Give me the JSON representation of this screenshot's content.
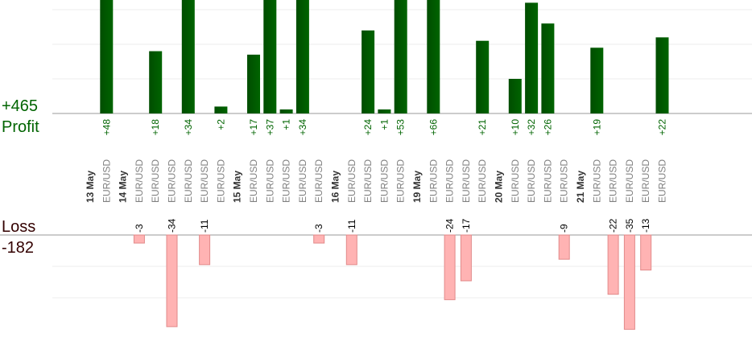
{
  "summary": {
    "profit_total": "+465",
    "profit_label": "Profit",
    "loss_label": "Loss",
    "loss_total": "-182"
  },
  "colors": {
    "profit_bar": "#006400",
    "profit_text": "#006400",
    "loss_bar": "#ffb3b3",
    "loss_text": "#000000",
    "loss_summary_text": "#330000",
    "date_label": "#333333",
    "pair_label": "#808080"
  },
  "chart_data": {
    "type": "bar",
    "series": [
      {
        "name": "Profit",
        "values": [
          48,
          18,
          34,
          2,
          17,
          37,
          1,
          34,
          24,
          1,
          53,
          66,
          21,
          10,
          32,
          26,
          19,
          22
        ]
      },
      {
        "name": "Loss",
        "values": [
          -3,
          -34,
          -11,
          -3,
          -11,
          -24,
          -17,
          -9,
          -22,
          -35,
          -13
        ]
      }
    ],
    "columns": [
      {
        "kind": "date",
        "label": "13 May"
      },
      {
        "kind": "trade",
        "label": "EUR/USD",
        "value": 48
      },
      {
        "kind": "date",
        "label": "14 May"
      },
      {
        "kind": "trade",
        "label": "EUR/USD",
        "value": -3
      },
      {
        "kind": "trade",
        "label": "EUR/USD",
        "value": 18
      },
      {
        "kind": "trade",
        "label": "EUR/USD",
        "value": -34
      },
      {
        "kind": "trade",
        "label": "EUR/USD",
        "value": 34
      },
      {
        "kind": "trade",
        "label": "EUR/USD",
        "value": -11
      },
      {
        "kind": "trade",
        "label": "EUR/USD",
        "value": 2
      },
      {
        "kind": "date",
        "label": "15 May"
      },
      {
        "kind": "trade",
        "label": "EUR/USD",
        "value": 17
      },
      {
        "kind": "trade",
        "label": "EUR/USD",
        "value": 37
      },
      {
        "kind": "trade",
        "label": "EUR/USD",
        "value": 1
      },
      {
        "kind": "trade",
        "label": "EUR/USD",
        "value": 34
      },
      {
        "kind": "trade",
        "label": "EUR/USD",
        "value": -3
      },
      {
        "kind": "date",
        "label": "16 May"
      },
      {
        "kind": "trade",
        "label": "EUR/USD",
        "value": -11
      },
      {
        "kind": "trade",
        "label": "EUR/USD",
        "value": 24
      },
      {
        "kind": "trade",
        "label": "EUR/USD",
        "value": 1
      },
      {
        "kind": "trade",
        "label": "EUR/USD",
        "value": 53
      },
      {
        "kind": "date",
        "label": "19 May"
      },
      {
        "kind": "trade",
        "label": "EUR/USD",
        "value": 66
      },
      {
        "kind": "trade",
        "label": "EUR/USD",
        "value": -24
      },
      {
        "kind": "trade",
        "label": "EUR/USD",
        "value": -17
      },
      {
        "kind": "trade",
        "label": "EUR/USD",
        "value": 21
      },
      {
        "kind": "date",
        "label": "20 May"
      },
      {
        "kind": "trade",
        "label": "EUR/USD",
        "value": 10
      },
      {
        "kind": "trade",
        "label": "EUR/USD",
        "value": 32
      },
      {
        "kind": "trade",
        "label": "EUR/USD",
        "value": 26
      },
      {
        "kind": "trade",
        "label": "EUR/USD",
        "value": -9
      },
      {
        "kind": "date",
        "label": "21 May"
      },
      {
        "kind": "trade",
        "label": "EUR/USD",
        "value": 19
      },
      {
        "kind": "trade",
        "label": "EUR/USD",
        "value": -22
      },
      {
        "kind": "trade",
        "label": "EUR/USD",
        "value": -35
      },
      {
        "kind": "trade",
        "label": "EUR/USD",
        "value": -13
      },
      {
        "kind": "trade",
        "label": "EUR/USD",
        "value": 22
      }
    ],
    "profit_axis_max": 33,
    "loss_axis_min": -35,
    "grid": true
  }
}
